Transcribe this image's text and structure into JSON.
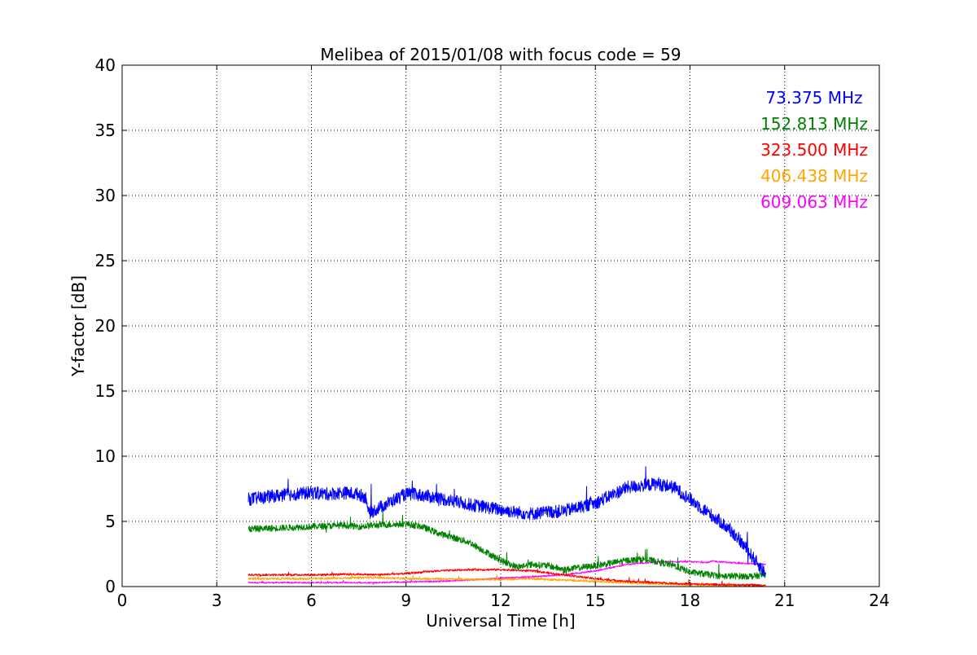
{
  "chart_data": {
    "type": "line",
    "title": "Melibea of 2015/01/08 with focus code = 59",
    "xlabel": "Universal Time [h]",
    "ylabel": "Y-factor [dB]",
    "xlim": [
      0,
      24
    ],
    "ylim": [
      0,
      40
    ],
    "xticks": [
      0,
      3,
      6,
      9,
      12,
      15,
      18,
      21,
      24
    ],
    "yticks": [
      0,
      5,
      10,
      15,
      20,
      25,
      30,
      35,
      40
    ],
    "xtick_labels": [
      "0",
      "3",
      "6",
      "9",
      "12",
      "15",
      "18",
      "21",
      "24"
    ],
    "ytick_labels": [
      "0",
      "5",
      "10",
      "15",
      "20",
      "25",
      "30",
      "35",
      "40"
    ],
    "grid": true,
    "legend_placement": "top-right",
    "series": [
      {
        "name": "73.375 MHz",
        "color": "#0000ff",
        "noise": 0.5,
        "x": [
          4.0,
          5.0,
          6.0,
          6.5,
          7.0,
          7.5,
          7.75,
          7.8,
          8.5,
          9.0,
          9.5,
          10.0,
          11.0,
          12.0,
          12.5,
          13.0,
          14.0,
          15.0,
          16.0,
          17.0,
          17.5,
          18.0,
          18.5,
          19.0,
          19.5,
          20.0,
          20.4
        ],
        "y": [
          6.7,
          7.0,
          7.2,
          7.1,
          7.2,
          7.1,
          6.8,
          5.6,
          6.5,
          7.1,
          7.0,
          6.8,
          6.3,
          5.9,
          5.7,
          5.6,
          5.8,
          6.4,
          7.6,
          7.9,
          7.6,
          6.7,
          5.8,
          4.9,
          3.8,
          2.2,
          1.0
        ]
      },
      {
        "name": "152.813 MHz",
        "color": "#008000",
        "noise": 0.25,
        "x": [
          4.0,
          5.0,
          6.0,
          7.0,
          7.5,
          8.0,
          9.0,
          9.5,
          10.0,
          11.0,
          11.5,
          12.0,
          12.5,
          13.0,
          13.5,
          14.0,
          15.0,
          16.0,
          16.5,
          17.0,
          17.5,
          18.0,
          19.0,
          20.0,
          20.4
        ],
        "y": [
          4.4,
          4.5,
          4.6,
          4.7,
          4.6,
          4.7,
          4.8,
          4.6,
          4.1,
          3.4,
          2.7,
          2.0,
          1.5,
          1.7,
          1.6,
          1.3,
          1.6,
          2.0,
          2.1,
          1.9,
          1.6,
          1.1,
          0.8,
          0.8,
          0.9
        ]
      },
      {
        "name": "323.500 MHz",
        "color": "#ff0000",
        "noise": 0.08,
        "x": [
          4.0,
          6.0,
          7.5,
          8.0,
          9.0,
          10.0,
          11.0,
          12.0,
          13.0,
          14.0,
          15.0,
          16.0,
          17.0,
          18.0,
          19.0,
          20.4
        ],
        "y": [
          0.9,
          0.9,
          0.95,
          0.9,
          1.0,
          1.2,
          1.3,
          1.3,
          1.2,
          0.9,
          0.6,
          0.4,
          0.3,
          0.2,
          0.15,
          0.1
        ]
      },
      {
        "name": "406.438 MHz",
        "color": "#ffa500",
        "noise": 0.08,
        "x": [
          4.0,
          6.0,
          8.0,
          9.0,
          10.0,
          11.0,
          12.0,
          13.0,
          14.0,
          15.0,
          16.0,
          17.0,
          18.0,
          19.0,
          20.4
        ],
        "y": [
          0.6,
          0.6,
          0.7,
          0.6,
          0.6,
          0.55,
          0.55,
          0.6,
          0.5,
          0.4,
          0.3,
          0.2,
          0.15,
          0.1,
          0.1
        ]
      },
      {
        "name": "609.063 MHz",
        "color": "#ff00ff",
        "noise": 0.06,
        "x": [
          4.0,
          7.0,
          8.0,
          9.0,
          10.0,
          11.0,
          12.0,
          13.0,
          14.0,
          15.0,
          16.0,
          17.0,
          18.0,
          18.6,
          18.7,
          19.5,
          20.4
        ],
        "y": [
          0.3,
          0.3,
          0.3,
          0.35,
          0.4,
          0.5,
          0.65,
          0.75,
          0.9,
          1.2,
          1.7,
          1.9,
          1.9,
          1.85,
          1.95,
          1.8,
          1.7
        ]
      }
    ]
  }
}
